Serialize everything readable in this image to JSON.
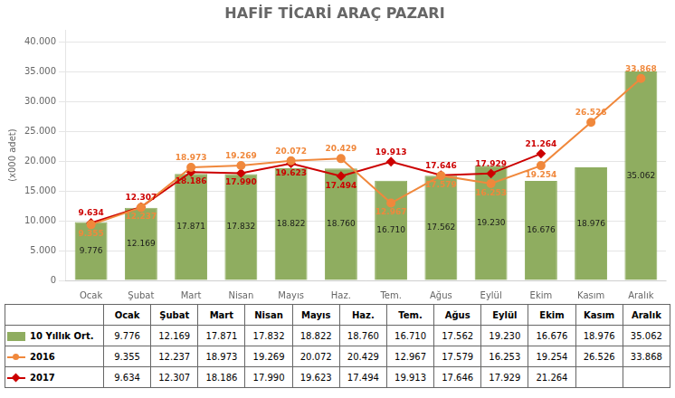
{
  "chart_data": {
    "type": "bar",
    "title": "HAFİF TİCARİ ARAÇ PAZARI",
    "ylabel": "(x000 adet)",
    "categories": [
      "Ocak",
      "Şubat",
      "Mart",
      "Nisan",
      "Mayıs",
      "Haz.",
      "Tem.",
      "Ağus",
      "Eylül",
      "Ekim",
      "Kasım",
      "Aralık"
    ],
    "series": [
      {
        "name": "10 Yıllık Ort.",
        "type": "bar",
        "color": "#8fad60",
        "values": [
          9776,
          12169,
          17871,
          17832,
          18822,
          18760,
          16710,
          17562,
          19230,
          16676,
          18976,
          35062
        ],
        "value_labels": [
          "9.776",
          "12.169",
          "17.871",
          "17.832",
          "18.822",
          "18.760",
          "16.710",
          "17.562",
          "19.230",
          "16.676",
          "18.976",
          "35.062"
        ]
      },
      {
        "name": "2016",
        "type": "line",
        "color": "#f0883c",
        "marker": "circle",
        "values": [
          9355,
          12237,
          18973,
          19269,
          20072,
          20429,
          12967,
          17579,
          16253,
          19254,
          26526,
          33868
        ],
        "value_labels": [
          "9.355",
          "12.237",
          "18.973",
          "19.269",
          "20.072",
          "20.429",
          "12.967",
          "17.579",
          "16.253",
          "19.254",
          "26.526",
          "33.868"
        ]
      },
      {
        "name": "2017",
        "type": "line",
        "color": "#cc0000",
        "marker": "diamond",
        "values": [
          9634,
          12307,
          18186,
          17990,
          19623,
          17494,
          19913,
          17646,
          17929,
          21264,
          null,
          null
        ],
        "value_labels": [
          "9.634",
          "12.307",
          "18.186",
          "17.990",
          "19.623",
          "17.494",
          "19.913",
          "17.646",
          "17.929",
          "21.264",
          null,
          null
        ]
      }
    ],
    "ylim": [
      0,
      42000
    ],
    "yticks": [
      0,
      {
        "value": 5000,
        "label": "5.000"
      },
      {
        "value": 10000,
        "label": "10.000"
      },
      {
        "value": 15000,
        "label": "15.000"
      },
      {
        "value": 20000,
        "label": "20.000"
      },
      {
        "value": 25000,
        "label": "25.000"
      },
      {
        "value": 30000,
        "label": "30.000"
      },
      {
        "value": 35000,
        "label": "35.000"
      },
      {
        "value": 40000,
        "label": "40.000"
      }
    ],
    "grid": true,
    "data_labels": true
  }
}
